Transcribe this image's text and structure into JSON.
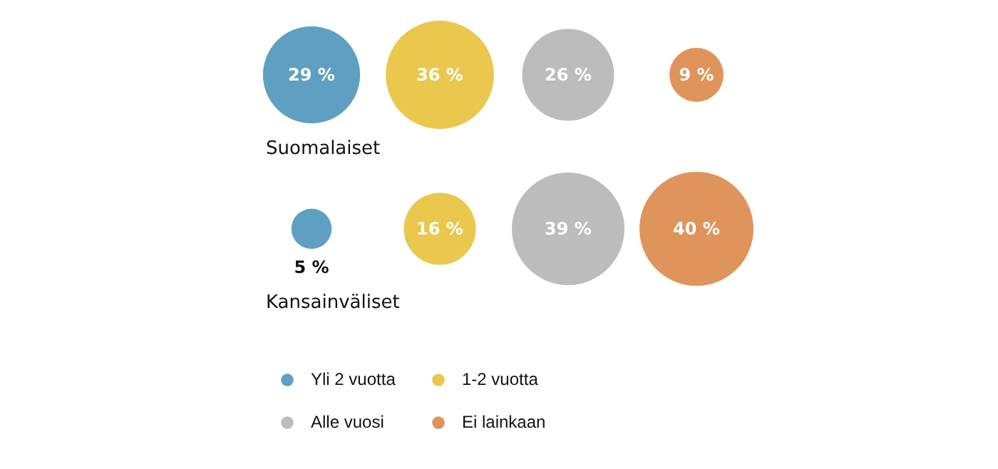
{
  "chart_data": {
    "type": "other",
    "categories": [
      "Suomalaiset",
      "Kansainväliset"
    ],
    "series": [
      {
        "name": "Yli 2 vuotta",
        "color": "#5fa0c2",
        "values": [
          29,
          5
        ],
        "value_labels": [
          "29 %",
          "5 %"
        ]
      },
      {
        "name": "1-2 vuotta",
        "color": "#e9c84d",
        "values": [
          36,
          16
        ],
        "value_labels": [
          "36 %",
          "16 %"
        ]
      },
      {
        "name": "Alle vuosi",
        "color": "#bcbcbc",
        "values": [
          26,
          39
        ],
        "value_labels": [
          "26 %",
          "39 %"
        ]
      },
      {
        "name": "Ei lainkaan",
        "color": "#df945c",
        "values": [
          9,
          40
        ],
        "value_labels": [
          "9 %",
          "40 %"
        ]
      }
    ],
    "legend": "bottom"
  }
}
